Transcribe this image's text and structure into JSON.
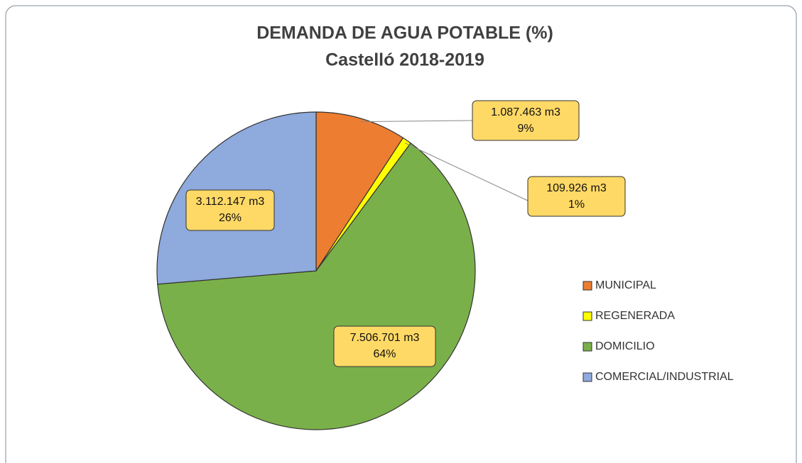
{
  "chart_data": {
    "type": "pie",
    "title": "DEMANDA DE AGUA POTABLE (%)",
    "subtitle": "Castelló 2018-2019",
    "categories": [
      "MUNICIPAL",
      "REGENERADA",
      "DOMICILIO",
      "COMERCIAL/INDUSTRIAL"
    ],
    "values": [
      1087463,
      109926,
      7506701,
      3112147
    ],
    "value_labels": [
      "1.087.463 m3",
      "109.926 m3",
      "7.506.701 m3",
      "3.112.147 m3"
    ],
    "percentages": [
      9,
      1,
      64,
      26
    ],
    "percentage_labels": [
      "9%",
      "1%",
      "64%",
      "26%"
    ],
    "colors": [
      "#ED7D31",
      "#FFFF00",
      "#7AB04A",
      "#8FAADC"
    ],
    "legend": "right"
  }
}
